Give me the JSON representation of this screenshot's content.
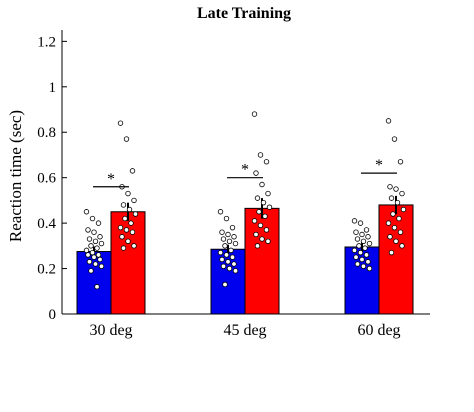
{
  "chart_data": {
    "type": "bar",
    "title": "Late Training",
    "ylabel": "Reaction time (sec)",
    "xlabel": "",
    "ylim": [
      0,
      1.25
    ],
    "yticks": [
      0,
      0.2,
      0.4,
      0.6,
      0.8,
      1,
      1.2
    ],
    "yticklabels": [
      "0",
      "0.2",
      "0.4",
      "0.6",
      "0.8",
      "1",
      "1.2"
    ],
    "grid": false,
    "legend": "none",
    "categories": [
      "30 deg",
      "45 deg",
      "60 deg"
    ],
    "series": [
      {
        "color": "#0000ee",
        "values": [
          0.275,
          0.285,
          0.295
        ],
        "errors": [
          0.022,
          0.02,
          0.025
        ],
        "points": [
          [
            0.45,
            0.42,
            0.4,
            0.37,
            0.36,
            0.34,
            0.33,
            0.32,
            0.31,
            0.3,
            0.29,
            0.28,
            0.27,
            0.26,
            0.26,
            0.25,
            0.24,
            0.23,
            0.22,
            0.21,
            0.19,
            0.12
          ],
          [
            0.45,
            0.42,
            0.38,
            0.36,
            0.35,
            0.34,
            0.33,
            0.32,
            0.31,
            0.3,
            0.28,
            0.27,
            0.26,
            0.25,
            0.24,
            0.23,
            0.22,
            0.21,
            0.2,
            0.19,
            0.13
          ],
          [
            0.41,
            0.4,
            0.37,
            0.36,
            0.35,
            0.34,
            0.33,
            0.32,
            0.31,
            0.3,
            0.29,
            0.28,
            0.27,
            0.26,
            0.25,
            0.24,
            0.23,
            0.22,
            0.21,
            0.2
          ]
        ]
      },
      {
        "color": "#ff0000",
        "values": [
          0.45,
          0.465,
          0.48
        ],
        "errors": [
          0.04,
          0.045,
          0.04
        ],
        "points": [
          [
            0.84,
            0.77,
            0.63,
            0.56,
            0.53,
            0.5,
            0.48,
            0.46,
            0.44,
            0.42,
            0.4,
            0.38,
            0.37,
            0.36,
            0.34,
            0.32,
            0.3,
            0.29
          ],
          [
            0.88,
            0.7,
            0.67,
            0.62,
            0.57,
            0.53,
            0.51,
            0.49,
            0.47,
            0.45,
            0.43,
            0.41,
            0.39,
            0.37,
            0.35,
            0.33,
            0.32,
            0.3
          ],
          [
            0.85,
            0.77,
            0.67,
            0.56,
            0.55,
            0.53,
            0.51,
            0.49,
            0.46,
            0.44,
            0.42,
            0.4,
            0.38,
            0.36,
            0.34,
            0.32,
            0.3,
            0.27
          ]
        ]
      }
    ],
    "significance": [
      {
        "text": "*",
        "y": 0.56
      },
      {
        "text": "*",
        "y": 0.6
      },
      {
        "text": "*",
        "y": 0.62
      }
    ]
  }
}
